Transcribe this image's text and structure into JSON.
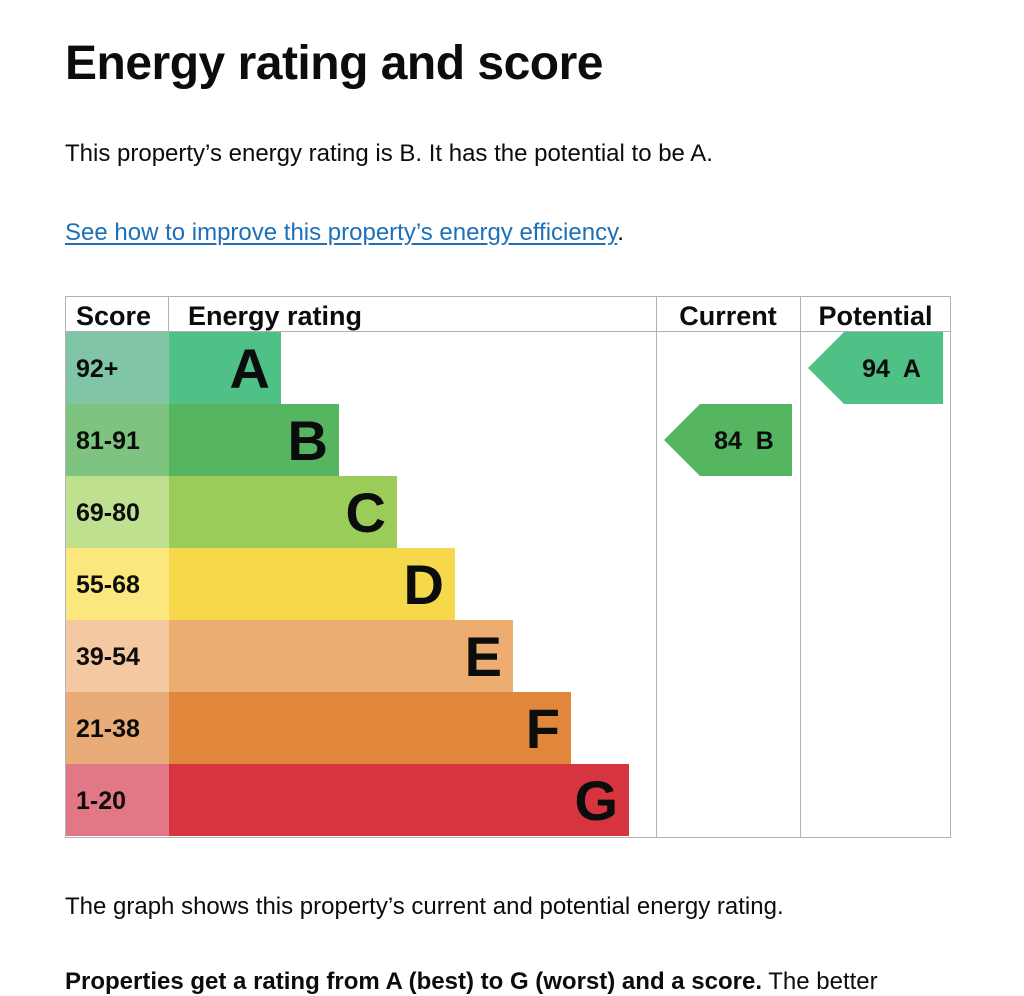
{
  "page": {
    "title": "Energy rating and score",
    "summary": "This property’s energy rating is B. It has the potential to be A.",
    "improve_link": "See how to improve this property’s energy efficiency",
    "improve_link_suffix": ".",
    "graph_caption": "The graph shows this property’s current and potential energy rating.",
    "next_para_bold": "Properties get a rating from A (best) to G (worst) and a score.",
    "next_para_rest": " The better"
  },
  "chart_data": {
    "type": "table",
    "headers": {
      "score": "Score",
      "rating": "Energy rating",
      "current": "Current",
      "potential": "Potential"
    },
    "bands": [
      {
        "band": "A",
        "range": "92+",
        "color": "#4fc086",
        "light": "#80c5a6"
      },
      {
        "band": "B",
        "range": "81-91",
        "color": "#55b561",
        "light": "#7ec480"
      },
      {
        "band": "C",
        "range": "69-80",
        "color": "#9bcb59",
        "light": "#bee08f"
      },
      {
        "band": "D",
        "range": "55-68",
        "color": "#f6d84b",
        "light": "#fbe77e"
      },
      {
        "band": "E",
        "range": "39-54",
        "color": "#eead70",
        "light": "#f4c8a0"
      },
      {
        "band": "F",
        "range": "21-38",
        "color": "#e1873b",
        "light": "#e9ab77"
      },
      {
        "band": "G",
        "range": "1-20",
        "color": "#d6343f",
        "light": "#e27885"
      }
    ],
    "current": {
      "score": 84,
      "band": "B",
      "label": "84  B"
    },
    "potential": {
      "score": 94,
      "band": "A",
      "label": "94  A"
    }
  }
}
